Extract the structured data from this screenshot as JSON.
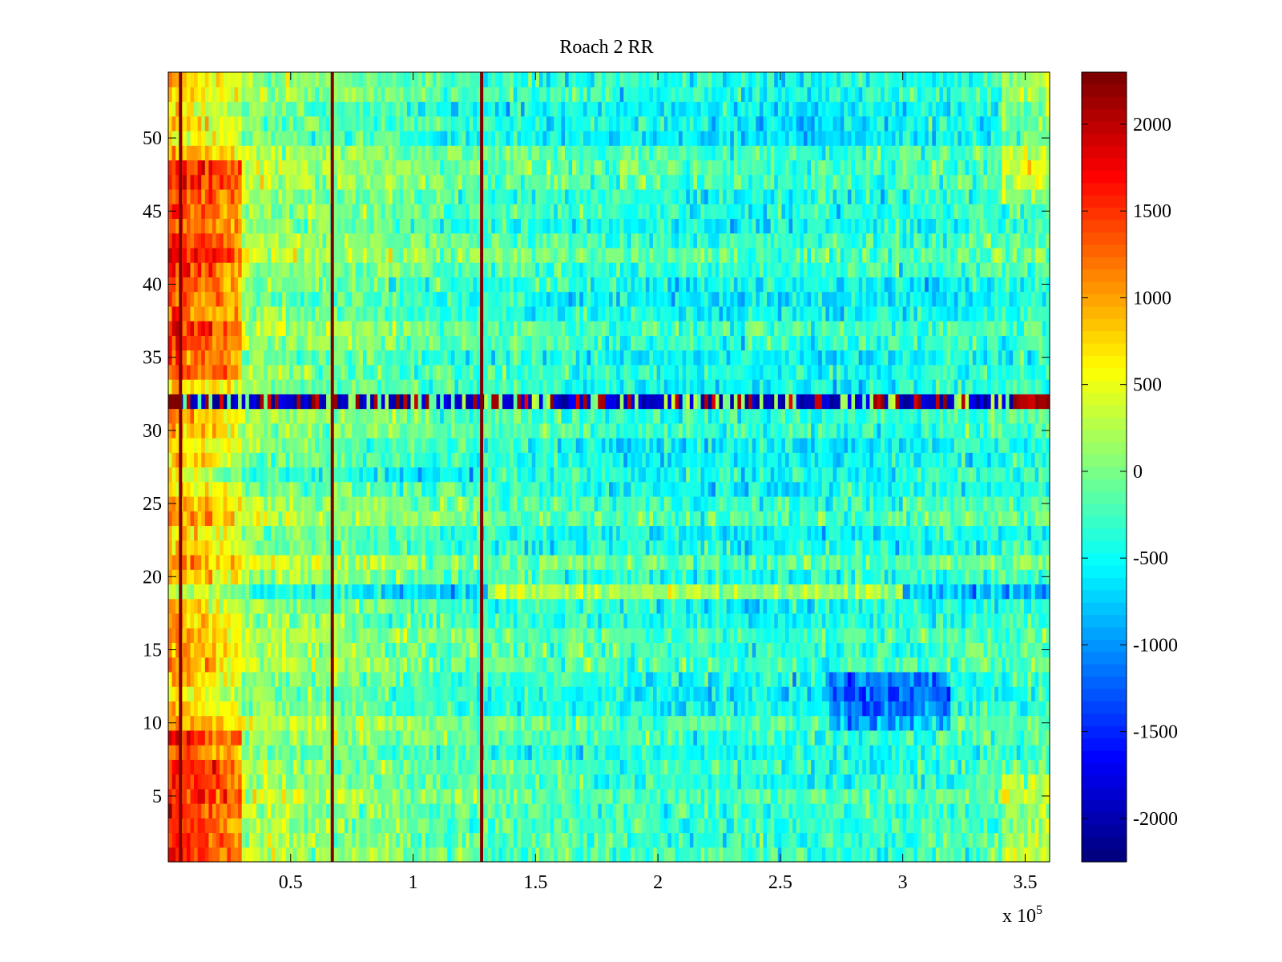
{
  "chart_data": {
    "type": "heatmap",
    "title": "Roach 2 RR",
    "xlabel": "",
    "ylabel": "",
    "x_exponent_label": "x 10",
    "x_exponent_power": "5",
    "xlim": [
      0,
      3.6
    ],
    "ylim": [
      0.5,
      54.5
    ],
    "x_ticks": [
      "0.5",
      "1",
      "1.5",
      "2",
      "2.5",
      "3",
      "3.5"
    ],
    "x_tick_values": [
      0.5,
      1,
      1.5,
      2,
      2.5,
      3,
      3.5
    ],
    "y_ticks": [
      "5",
      "10",
      "15",
      "20",
      "25",
      "30",
      "35",
      "40",
      "45",
      "50"
    ],
    "y_tick_values": [
      5,
      10,
      15,
      20,
      25,
      30,
      35,
      40,
      45,
      50
    ],
    "rows": 54,
    "colormap": "jet",
    "clim": [
      -2250,
      2300
    ],
    "colorbar_ticks": [
      "2000",
      "1500",
      "1000",
      "500",
      "0",
      "-500",
      "-1000",
      "-1500",
      "-2000"
    ],
    "colorbar_tick_values": [
      2000,
      1500,
      1000,
      500,
      0,
      -500,
      -1000,
      -1500,
      -2000
    ],
    "vertical_lines_x": [
      0.05,
      0.67,
      1.28
    ],
    "row_32_note": "alternating extreme values",
    "grid": false
  }
}
